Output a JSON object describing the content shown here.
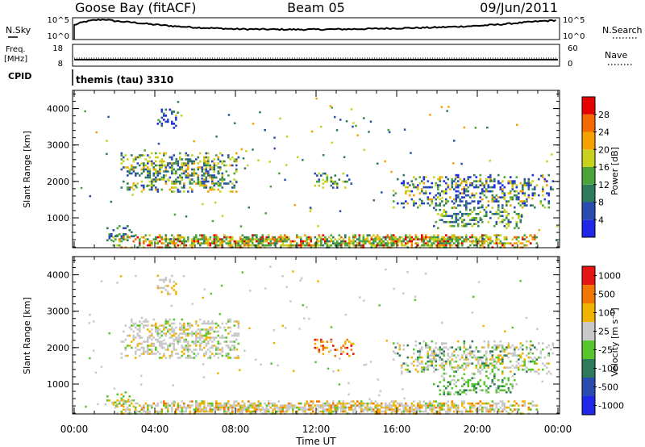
{
  "header": {
    "station": "Goose Bay (fitACF)",
    "beam": "Beam 05",
    "date": "09/Jun/2011"
  },
  "noise_panel": {
    "left_label": "N.Sky",
    "left_ticks": [
      "10^5",
      "10^0"
    ],
    "right_ticks": [
      "10^5",
      "10^0"
    ],
    "right_label": "N.Search"
  },
  "freq_panel": {
    "left_label_1": "Freq.",
    "left_label_2": "[MHz]",
    "left_ticks": [
      "18",
      "8"
    ],
    "right_ticks": [
      "60",
      "0"
    ],
    "right_label": "Nave"
  },
  "cpid_panel": {
    "label": "CPID",
    "text": "themis (tau) 3310"
  },
  "colorbars": {
    "power": {
      "label": "Power [dB]",
      "ticks": [
        "4",
        "8",
        "12",
        "16",
        "20",
        "24",
        "28"
      ],
      "colors": [
        "#1e28e6",
        "#2a4cb0",
        "#2e7a5a",
        "#4ba43b",
        "#c8d21e",
        "#f5a200",
        "#f26a00",
        "#e60000"
      ]
    },
    "velocity": {
      "label": "Velocity [m s⁻¹]",
      "ticks": [
        "1000",
        "500",
        "100",
        "25",
        "-25",
        "-100",
        "-500",
        "-1000"
      ],
      "colors": [
        "#1e28e6",
        "#2a4cb0",
        "#2e7a5a",
        "#57c52e",
        "#c8c8c8",
        "#f0b400",
        "#f07800",
        "#e61414"
      ]
    }
  },
  "chart_data": [
    {
      "type": "line",
      "name": "noise",
      "x": [
        0,
        0.5,
        1,
        1.5,
        2,
        3,
        4,
        5,
        6,
        8,
        10,
        12,
        14,
        16,
        18,
        19,
        20,
        21,
        22,
        23,
        24
      ],
      "y": [
        3.6,
        4.4,
        4.8,
        5.0,
        4.6,
        4.2,
        3.7,
        3.3,
        3.0,
        2.6,
        2.5,
        2.5,
        2.6,
        2.8,
        3.0,
        3.2,
        3.4,
        3.7,
        4.1,
        4.5,
        4.8
      ],
      "ylim": [
        0,
        5
      ]
    },
    {
      "type": "line",
      "name": "frequency",
      "x": [
        0,
        24
      ],
      "y": [
        11,
        11
      ],
      "ylim": [
        8,
        18
      ]
    },
    {
      "type": "heatmap",
      "title": "Power",
      "xlabel": "",
      "ylabel": "Slant Range [km]",
      "xlim": [
        0,
        24
      ],
      "ylim": [
        180,
        4500
      ],
      "yticks": [
        1000,
        2000,
        3000,
        4000
      ],
      "regions": [
        {
          "x": [
            4.1,
            5.1
          ],
          "y": [
            3500,
            4000
          ],
          "density": 0.45,
          "levels": [
            0,
            1,
            1,
            2
          ]
        },
        {
          "x": [
            2.3,
            8.2
          ],
          "y": [
            1700,
            2800
          ],
          "density": 0.5,
          "levels": [
            1,
            1,
            2,
            3,
            4,
            4,
            5,
            2
          ]
        },
        {
          "x": [
            1.5,
            3.0
          ],
          "y": [
            400,
            800
          ],
          "density": 0.3,
          "levels": [
            1,
            2,
            3
          ]
        },
        {
          "x": [
            11.8,
            13.8
          ],
          "y": [
            1800,
            2300
          ],
          "density": 0.25,
          "levels": [
            1,
            2,
            3,
            4
          ]
        },
        {
          "x": [
            15.8,
            23.8
          ],
          "y": [
            1300,
            2200
          ],
          "density": 0.4,
          "levels": [
            1,
            1,
            2,
            3,
            4,
            5,
            0
          ]
        },
        {
          "x": [
            17.8,
            22.2
          ],
          "y": [
            700,
            1300
          ],
          "density": 0.35,
          "levels": [
            1,
            2,
            3,
            4
          ]
        },
        {
          "x": [
            1.8,
            23.0
          ],
          "y": [
            200,
            550
          ],
          "density": 0.75,
          "levels": [
            2,
            3,
            4,
            5,
            6,
            7,
            4,
            3
          ]
        }
      ]
    },
    {
      "type": "heatmap",
      "title": "Velocity",
      "xlabel": "Time UT",
      "ylabel": "Slant Range [km]",
      "xlim": [
        0,
        24
      ],
      "ylim": [
        180,
        4500
      ],
      "yticks": [
        1000,
        2000,
        3000,
        4000
      ],
      "xticks": [
        "00:00",
        "04:00",
        "08:00",
        "12:00",
        "16:00",
        "20:00",
        "00:00"
      ],
      "regions": [
        {
          "x": [
            4.1,
            5.1
          ],
          "y": [
            3500,
            4000
          ],
          "density": 0.45,
          "levels": [
            4,
            4,
            4,
            5
          ]
        },
        {
          "x": [
            2.3,
            8.2
          ],
          "y": [
            1700,
            2800
          ],
          "density": 0.5,
          "levels": [
            4,
            4,
            4,
            4,
            3,
            5
          ]
        },
        {
          "x": [
            1.5,
            3.0
          ],
          "y": [
            400,
            800
          ],
          "density": 0.3,
          "levels": [
            4,
            5,
            3
          ]
        },
        {
          "x": [
            11.8,
            13.8
          ],
          "y": [
            1800,
            2300
          ],
          "density": 0.25,
          "levels": [
            6,
            7,
            5
          ]
        },
        {
          "x": [
            15.8,
            23.8
          ],
          "y": [
            1300,
            2200
          ],
          "density": 0.4,
          "levels": [
            4,
            4,
            3,
            2,
            4,
            5
          ]
        },
        {
          "x": [
            17.8,
            22.2
          ],
          "y": [
            700,
            1300
          ],
          "density": 0.35,
          "levels": [
            3,
            2,
            3,
            4
          ]
        },
        {
          "x": [
            1.8,
            23.0
          ],
          "y": [
            200,
            550
          ],
          "density": 0.75,
          "levels": [
            4,
            4,
            5,
            3,
            4,
            6,
            4,
            5
          ]
        }
      ]
    }
  ]
}
